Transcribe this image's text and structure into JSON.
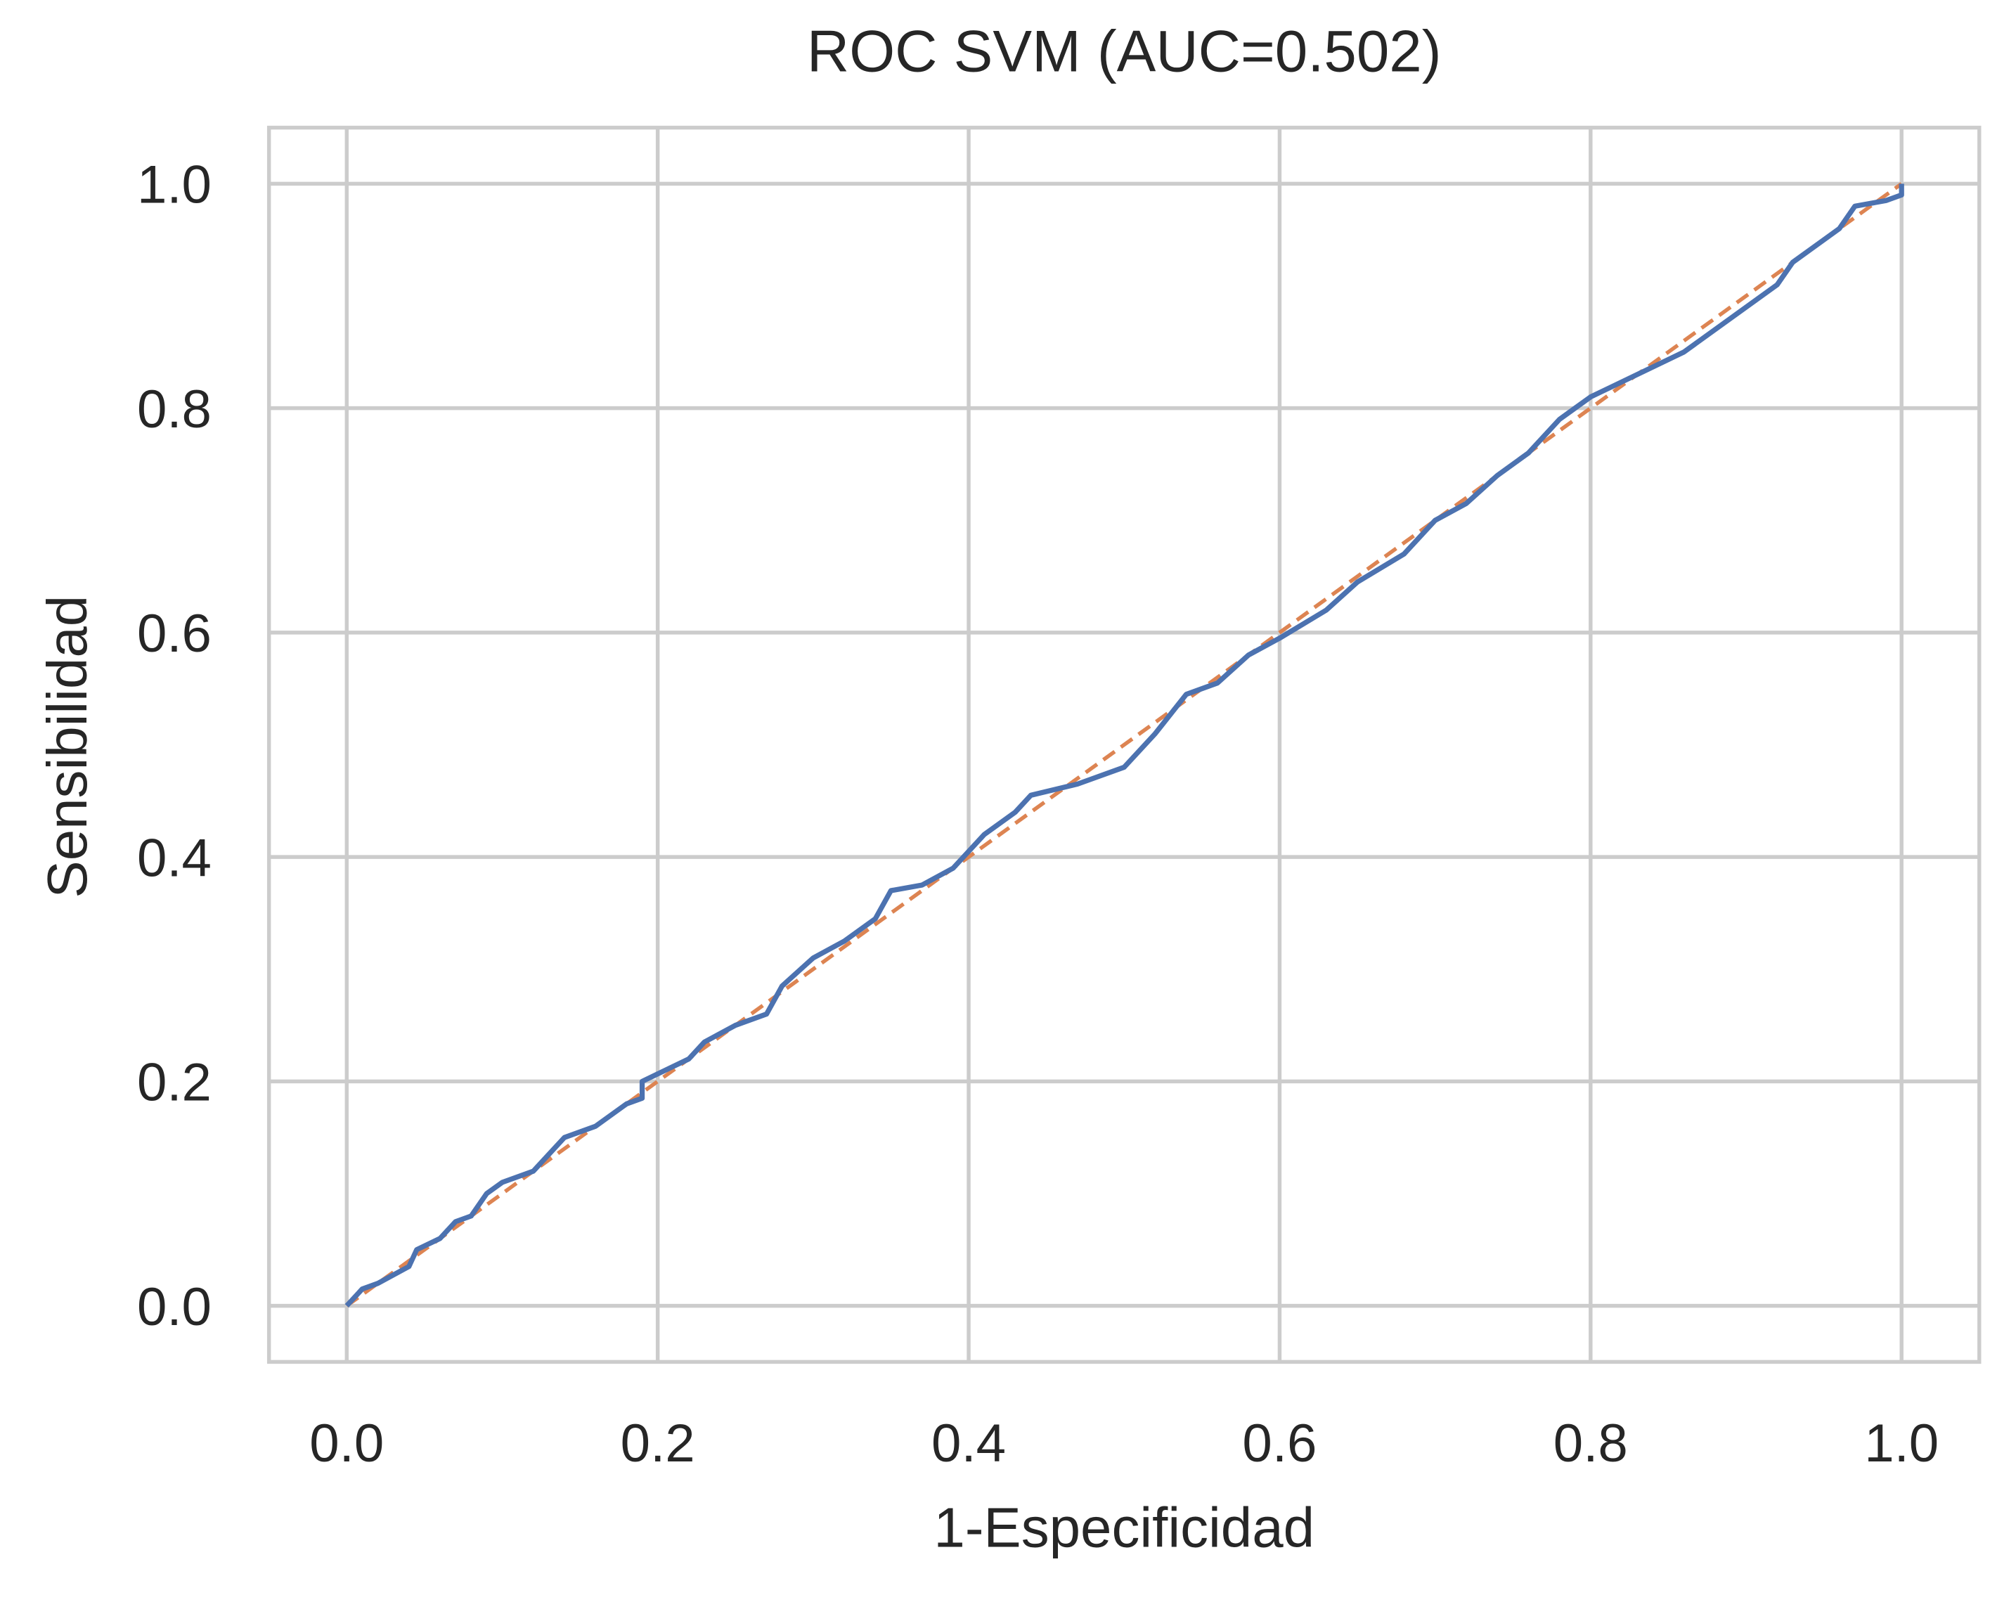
{
  "chart_data": {
    "type": "line",
    "title": "ROC SVM (AUC=0.502)",
    "x_label": "1-Especificidad",
    "y_label": "Sensibilidad",
    "xlim": [
      -0.05,
      1.05
    ],
    "ylim": [
      -0.05,
      1.05
    ],
    "xticks": [
      {
        "value": 0,
        "label": "0.0"
      },
      {
        "value": 0.2,
        "label": "0.2"
      },
      {
        "value": 0.4,
        "label": "0.4"
      },
      {
        "value": 0.6,
        "label": "0.6"
      },
      {
        "value": 0.8,
        "label": "0.8"
      },
      {
        "value": 1,
        "label": "1.0"
      }
    ],
    "yticks": [
      {
        "value": 0,
        "label": "0.0"
      },
      {
        "value": 0.2,
        "label": "0.2"
      },
      {
        "value": 0.4,
        "label": "0.4"
      },
      {
        "value": 0.6,
        "label": "0.6"
      },
      {
        "value": 0.8,
        "label": "0.8"
      },
      {
        "value": 1,
        "label": "1.0"
      }
    ],
    "grid": true,
    "series": [
      {
        "color": "#4c72b0",
        "linestyle": "solid",
        "x": [
          0,
          0.01,
          0.02,
          0.04,
          0.045,
          0.06,
          0.07,
          0.08,
          0.09,
          0.1,
          0.12,
          0.13,
          0.14,
          0.16,
          0.18,
          0.19,
          0.19,
          0.22,
          0.23,
          0.25,
          0.27,
          0.28,
          0.3,
          0.32,
          0.34,
          0.35,
          0.37,
          0.39,
          0.41,
          0.43,
          0.44,
          0.47,
          0.5,
          0.52,
          0.54,
          0.56,
          0.58,
          0.6,
          0.63,
          0.65,
          0.68,
          0.7,
          0.72,
          0.74,
          0.76,
          0.78,
          0.79,
          0.8,
          0.86,
          0.92,
          0.93,
          0.95,
          0.96,
          0.97,
          0.99,
          1,
          1
        ],
        "values": [
          0,
          0.015,
          0.02,
          0.035,
          0.05,
          0.06,
          0.075,
          0.08,
          0.1,
          0.11,
          0.12,
          0.135,
          0.15,
          0.16,
          0.18,
          0.185,
          0.2,
          0.22,
          0.235,
          0.25,
          0.26,
          0.285,
          0.31,
          0.325,
          0.345,
          0.37,
          0.375,
          0.39,
          0.42,
          0.44,
          0.455,
          0.465,
          0.48,
          0.51,
          0.545,
          0.555,
          0.58,
          0.595,
          0.62,
          0.645,
          0.67,
          0.7,
          0.715,
          0.74,
          0.76,
          0.79,
          0.8,
          0.81,
          0.85,
          0.91,
          0.93,
          0.95,
          0.96,
          0.98,
          0.985,
          0.99,
          1
        ]
      },
      {
        "color": "#dd8452",
        "linestyle": "dashed",
        "x": [
          0,
          1
        ],
        "values": [
          0,
          1
        ]
      }
    ]
  }
}
